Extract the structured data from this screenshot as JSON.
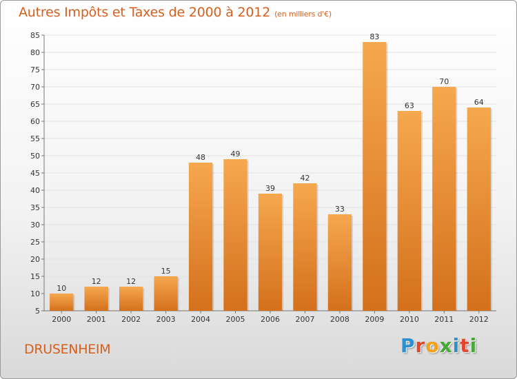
{
  "header": {
    "title": "Autres Impôts et Taxes de 2000 à 2012",
    "unit": "(en milliers d'€)"
  },
  "footer": {
    "town": "DRUSENHEIM",
    "logo": [
      "P",
      "r",
      "o",
      "x",
      "i",
      "t",
      "i"
    ]
  },
  "colors": {
    "bar_top": "#f6a84f",
    "bar_bottom": "#d4701c",
    "title": "#d65f1e",
    "logo": [
      "#2e8fd1",
      "#e2462c",
      "#f3a11b",
      "#49a83a",
      "#2e8fd1",
      "#e2462c",
      "#49a83a"
    ]
  },
  "chart_data": {
    "type": "bar",
    "categories": [
      "2000",
      "2001",
      "2002",
      "2003",
      "2004",
      "2005",
      "2006",
      "2007",
      "2008",
      "2009",
      "2010",
      "2011",
      "2012"
    ],
    "values": [
      10,
      12,
      12,
      15,
      48,
      49,
      39,
      42,
      33,
      83,
      63,
      70,
      64
    ],
    "ylim": [
      5,
      85
    ],
    "yticks": [
      5,
      10,
      15,
      20,
      25,
      30,
      35,
      40,
      45,
      50,
      55,
      60,
      65,
      70,
      75,
      80,
      85
    ],
    "grid": true
  }
}
